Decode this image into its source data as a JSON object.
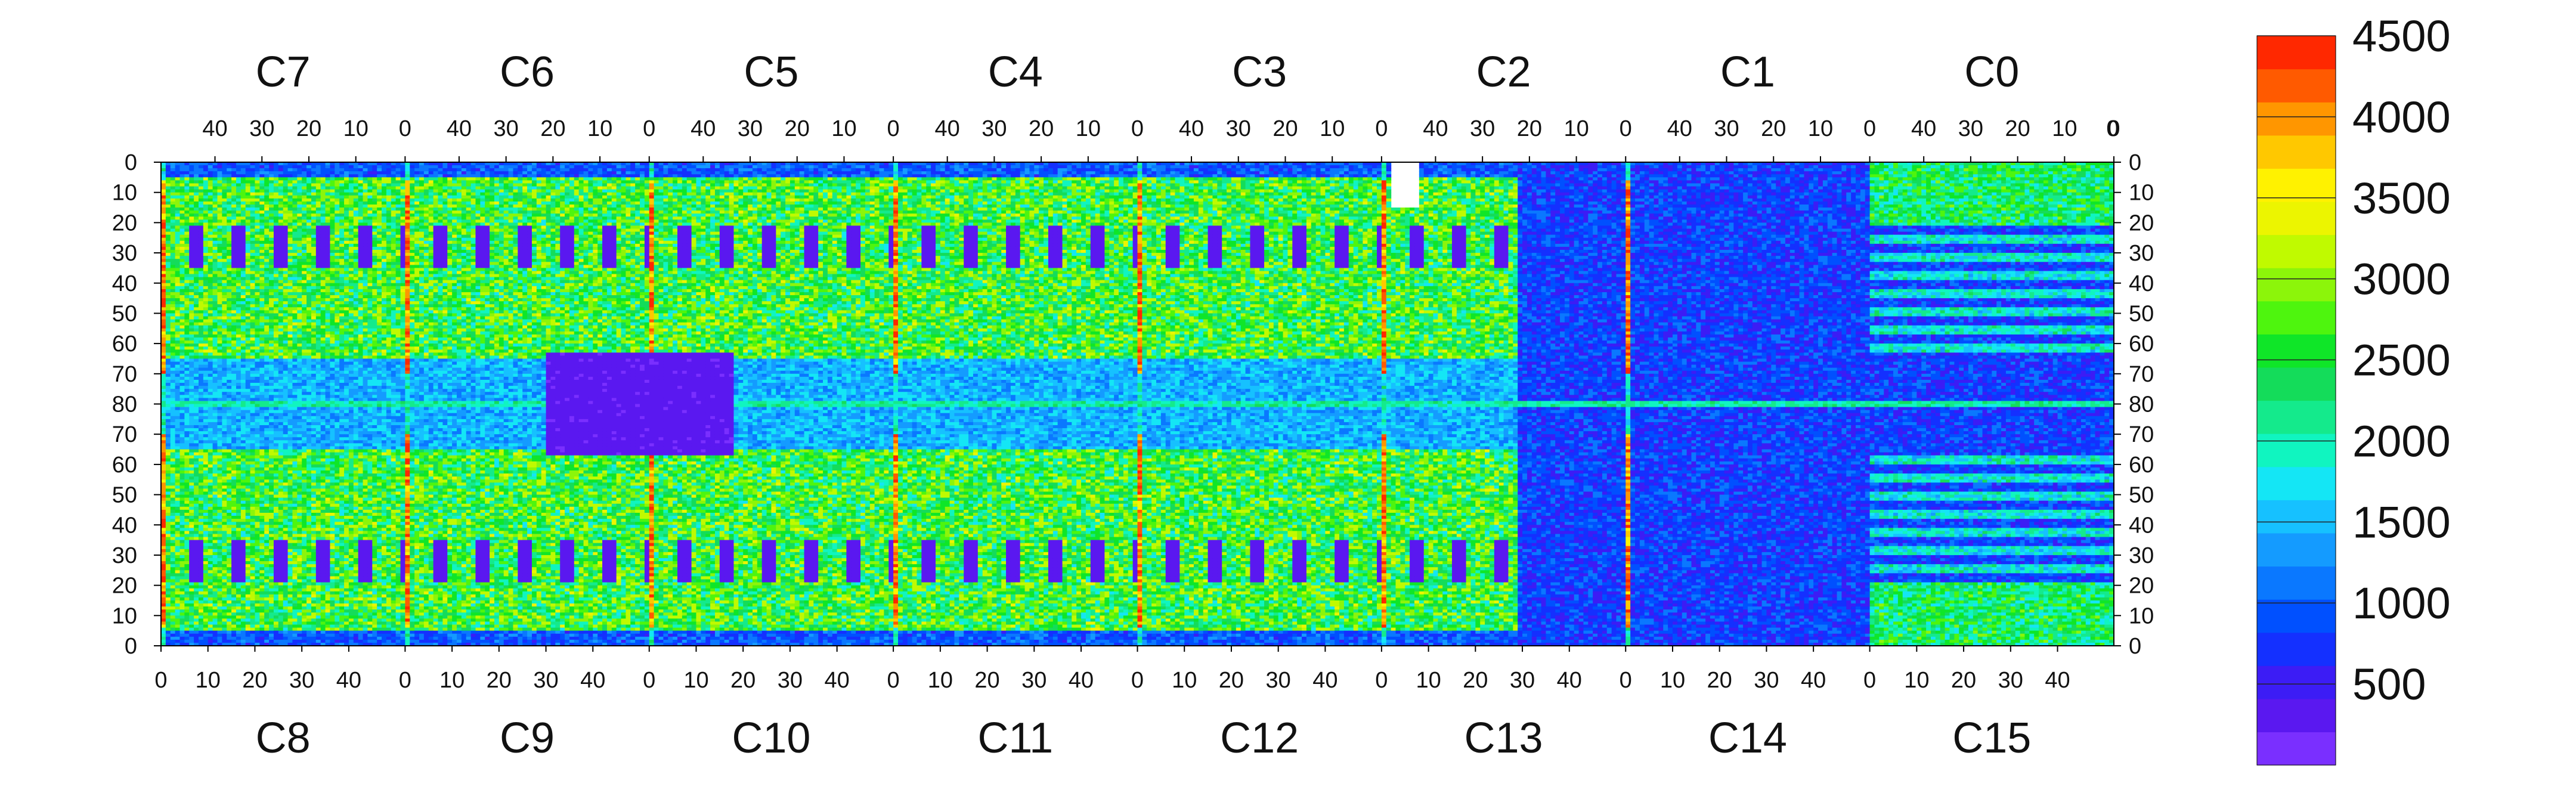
{
  "chart_data": {
    "type": "heatmap",
    "title": "",
    "top_chip_labels": [
      "C7",
      "C6",
      "C5",
      "C4",
      "C3",
      "C2",
      "C1",
      "C0"
    ],
    "bottom_chip_labels": [
      "C8",
      "C9",
      "C10",
      "C11",
      "C12",
      "C13",
      "C14",
      "C15"
    ],
    "top_x_ticks": [
      "40",
      "30",
      "20",
      "10",
      "0"
    ],
    "bottom_x_ticks": [
      "0",
      "10",
      "20",
      "30",
      "40"
    ],
    "y_ticks_upper": [
      "0",
      "10",
      "20",
      "30",
      "40",
      "50",
      "60",
      "70",
      "80"
    ],
    "y_ticks_lower": [
      "70",
      "60",
      "50",
      "40",
      "30",
      "20",
      "10",
      "0"
    ],
    "columns_per_chip": 52,
    "rows_per_half": 80,
    "colorbar": {
      "min": 0,
      "max": 4500,
      "step": 250,
      "tick_labels": [
        "500",
        "1000",
        "1500",
        "2000",
        "2500",
        "3000",
        "3500",
        "4000",
        "4500"
      ],
      "tick_values": [
        500,
        1000,
        1500,
        2000,
        2500,
        3000,
        3500,
        4000,
        4500
      ],
      "colors": [
        "#7a2fff",
        "#5a18f0",
        "#3c1cf5",
        "#1430ff",
        "#0050ff",
        "#0a78ff",
        "#149bff",
        "#16c1ff",
        "#14e6f5",
        "#10f5c0",
        "#14ea8c",
        "#14dc5a",
        "#0fe628",
        "#4ef50e",
        "#8cf50a",
        "#c0fa00",
        "#ecf500",
        "#fff200",
        "#ffc800",
        "#ff9600",
        "#ff5a00",
        "#ff2800"
      ]
    },
    "regions": {
      "high_columns_note": "column 0 / 51 boundaries of chips 0-12 show values 3500-4500",
      "dead_regions_value": 0,
      "uniform_blocks": [
        {
          "chip": "C7-C5 boundary",
          "rows": [
            63,
            97
          ],
          "value": 250
        },
        {
          "chip": "C13-C15 (right side)",
          "rows": [
            30,
            130
          ],
          "value": 400
        }
      ],
      "missing_pixels": {
        "chip": "C2",
        "rows": [
          0,
          15
        ],
        "cols": [
          2,
          8
        ]
      }
    }
  }
}
